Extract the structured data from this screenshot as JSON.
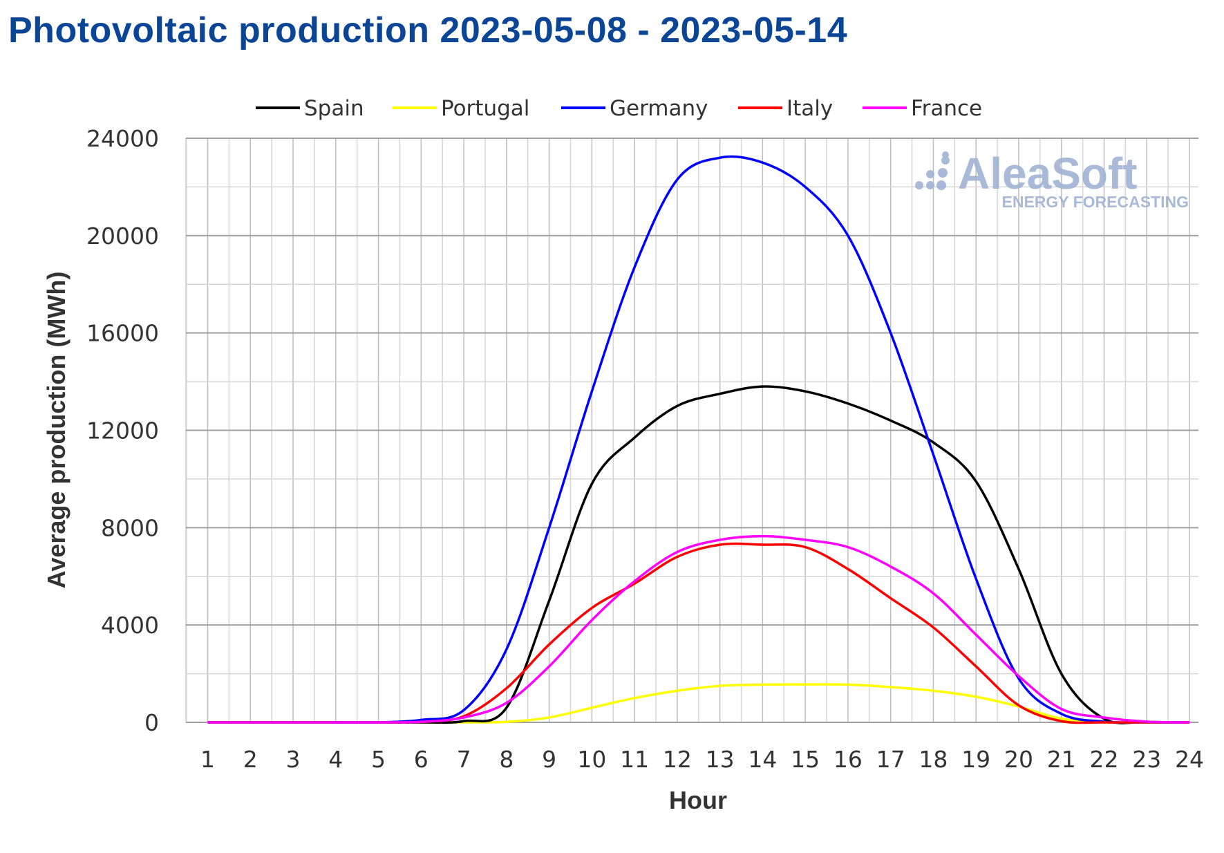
{
  "chart_data": {
    "type": "line",
    "title": "Photovoltaic production 2023-05-08 - 2023-05-14",
    "xlabel": "Hour",
    "ylabel": "Average production (MWh)",
    "ylim": [
      0,
      24000
    ],
    "yticks": [
      0,
      4000,
      8000,
      12000,
      16000,
      20000,
      24000
    ],
    "x": [
      1,
      2,
      3,
      4,
      5,
      6,
      7,
      8,
      9,
      10,
      11,
      12,
      13,
      14,
      15,
      16,
      17,
      18,
      19,
      20,
      21,
      22,
      23,
      24
    ],
    "grid": true,
    "legend_position": "top",
    "series": [
      {
        "name": "Spain",
        "color": "#000000",
        "values": [
          0,
          0,
          0,
          0,
          0,
          0,
          50,
          600,
          5000,
          9800,
          11700,
          13000,
          13500,
          13800,
          13600,
          13100,
          12400,
          11500,
          9900,
          6300,
          2000,
          150,
          20,
          0
        ]
      },
      {
        "name": "Portugal",
        "color": "#ffff00",
        "values": [
          0,
          0,
          0,
          0,
          0,
          0,
          0,
          20,
          200,
          600,
          1000,
          1300,
          1500,
          1550,
          1560,
          1550,
          1450,
          1300,
          1050,
          650,
          150,
          10,
          0,
          0
        ]
      },
      {
        "name": "Germany",
        "color": "#0000ff",
        "values": [
          0,
          0,
          0,
          0,
          0,
          100,
          500,
          3000,
          8000,
          13600,
          18700,
          22300,
          23200,
          23000,
          22000,
          20000,
          16000,
          11000,
          5900,
          1800,
          350,
          30,
          0,
          0
        ]
      },
      {
        "name": "Italy",
        "color": "#ff0000",
        "values": [
          0,
          0,
          0,
          0,
          0,
          20,
          250,
          1400,
          3200,
          4700,
          5700,
          6800,
          7300,
          7300,
          7200,
          6300,
          5100,
          3900,
          2300,
          700,
          50,
          0,
          0,
          0
        ]
      },
      {
        "name": "France",
        "color": "#ff00ff",
        "values": [
          0,
          0,
          0,
          0,
          0,
          20,
          200,
          800,
          2300,
          4200,
          5800,
          7000,
          7500,
          7650,
          7500,
          7200,
          6400,
          5300,
          3600,
          1900,
          550,
          200,
          30,
          0
        ]
      }
    ]
  },
  "watermark": {
    "brand": "AleaSoft",
    "tagline": "ENERGY FORECASTING"
  }
}
